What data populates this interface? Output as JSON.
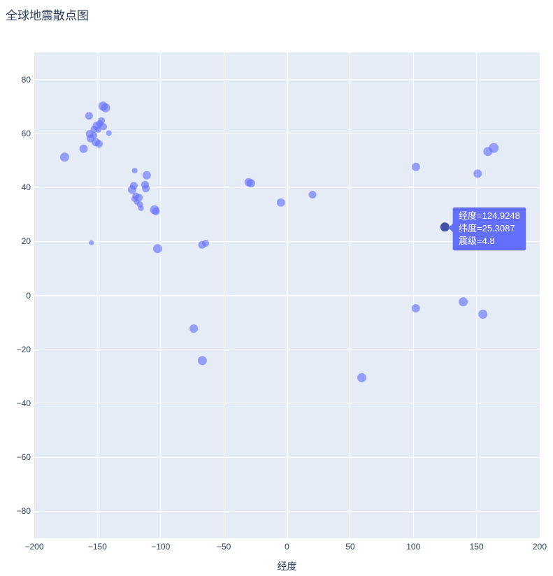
{
  "title": "全球地震散点图",
  "colors": {
    "plot_bg": "#e5ecf6",
    "grid": "#ffffff",
    "text": "#2a3f5f",
    "marker": "#636efa",
    "marker_opacity": 0.62,
    "hover_marker": "#4450a8",
    "tooltip_bg": "#636efa",
    "tooltip_text": "#ffffff"
  },
  "tooltip": {
    "lines": [
      "经度=124.9248",
      "纬度=25.3087",
      "震级=4.8"
    ]
  },
  "chart_data": {
    "type": "scatter",
    "title": "全球地震散点图",
    "xlabel": "经度",
    "ylabel": "",
    "x_range": [
      -200,
      200
    ],
    "y_range": [
      -90,
      90
    ],
    "grid": true,
    "legend_position": "none",
    "x_ticks": [
      {
        "v": -200,
        "label": "−200"
      },
      {
        "v": -150,
        "label": "−150"
      },
      {
        "v": -100,
        "label": "−100"
      },
      {
        "v": -50,
        "label": "−50"
      },
      {
        "v": 0,
        "label": "0"
      },
      {
        "v": 50,
        "label": "50"
      },
      {
        "v": 100,
        "label": "100"
      },
      {
        "v": 150,
        "label": "150"
      },
      {
        "v": 200,
        "label": "200"
      }
    ],
    "y_ticks": [
      {
        "v": 80,
        "label": "80"
      },
      {
        "v": 60,
        "label": "60"
      },
      {
        "v": 40,
        "label": "40"
      },
      {
        "v": 20,
        "label": "20"
      },
      {
        "v": 0,
        "label": "0"
      },
      {
        "v": -20,
        "label": "−20"
      },
      {
        "v": -40,
        "label": "−40"
      },
      {
        "v": -60,
        "label": "−60"
      },
      {
        "v": -80,
        "label": "−80"
      }
    ],
    "hover_point": {
      "lon": 124.9248,
      "lat": 25.3087,
      "magnitude": 4.8,
      "size": 13
    },
    "points": [
      {
        "lon": -176.0,
        "lat": 51.2,
        "size": 13
      },
      {
        "lon": -161.0,
        "lat": 54.3,
        "size": 12
      },
      {
        "lon": -155.4,
        "lat": 58.1,
        "size": 11
      },
      {
        "lon": -151.3,
        "lat": 56.8,
        "size": 12
      },
      {
        "lon": -148.8,
        "lat": 56.1,
        "size": 11
      },
      {
        "lon": -156.2,
        "lat": 59.8,
        "size": 11
      },
      {
        "lon": -152.8,
        "lat": 59.3,
        "size": 10
      },
      {
        "lon": -140.9,
        "lat": 60.1,
        "size": 8
      },
      {
        "lon": -152.7,
        "lat": 61.5,
        "size": 10
      },
      {
        "lon": -149.3,
        "lat": 61.4,
        "size": 9
      },
      {
        "lon": -150.5,
        "lat": 62.8,
        "size": 12
      },
      {
        "lon": -145.2,
        "lat": 62.5,
        "size": 10
      },
      {
        "lon": -148.2,
        "lat": 63.6,
        "size": 10
      },
      {
        "lon": -146.8,
        "lat": 64.7,
        "size": 10
      },
      {
        "lon": -156.6,
        "lat": 66.5,
        "size": 11
      },
      {
        "lon": -145.6,
        "lat": 70.1,
        "size": 13
      },
      {
        "lon": -143.6,
        "lat": 69.5,
        "size": 13
      },
      {
        "lon": -120.5,
        "lat": 46.2,
        "size": 8
      },
      {
        "lon": -111.0,
        "lat": 44.5,
        "size": 12
      },
      {
        "lon": -112.3,
        "lat": 41.0,
        "size": 11
      },
      {
        "lon": -111.7,
        "lat": 39.6,
        "size": 11
      },
      {
        "lon": -121.2,
        "lat": 40.6,
        "size": 11
      },
      {
        "lon": -122.6,
        "lat": 39.2,
        "size": 12
      },
      {
        "lon": -119.6,
        "lat": 36.8,
        "size": 10
      },
      {
        "lon": -117.2,
        "lat": 36.2,
        "size": 11
      },
      {
        "lon": -120.9,
        "lat": 35.7,
        "size": 8
      },
      {
        "lon": -118.9,
        "lat": 34.6,
        "size": 8
      },
      {
        "lon": -116.4,
        "lat": 33.7,
        "size": 9
      },
      {
        "lon": -115.5,
        "lat": 32.3,
        "size": 8
      },
      {
        "lon": -104.8,
        "lat": 31.7,
        "size": 13
      },
      {
        "lon": -103.7,
        "lat": 31.1,
        "size": 11
      },
      {
        "lon": -154.8,
        "lat": 19.5,
        "size": 7
      },
      {
        "lon": -102.4,
        "lat": 17.3,
        "size": 13
      },
      {
        "lon": -67.2,
        "lat": 18.7,
        "size": 11
      },
      {
        "lon": -64.4,
        "lat": 19.3,
        "size": 10
      },
      {
        "lon": -73.8,
        "lat": -12.3,
        "size": 12
      },
      {
        "lon": -67.0,
        "lat": -24.2,
        "size": 13
      },
      {
        "lon": -30.3,
        "lat": 41.9,
        "size": 12
      },
      {
        "lon": -28.5,
        "lat": 41.5,
        "size": 12
      },
      {
        "lon": -4.8,
        "lat": 34.4,
        "size": 12
      },
      {
        "lon": 20.2,
        "lat": 37.3,
        "size": 11
      },
      {
        "lon": 59.2,
        "lat": -30.5,
        "size": 13
      },
      {
        "lon": 101.9,
        "lat": -4.8,
        "size": 12
      },
      {
        "lon": 102.0,
        "lat": 47.6,
        "size": 12
      },
      {
        "lon": 139.5,
        "lat": -2.4,
        "size": 13
      },
      {
        "lon": 150.9,
        "lat": 45.1,
        "size": 12
      },
      {
        "lon": 155.0,
        "lat": -7.0,
        "size": 13
      },
      {
        "lon": 159.0,
        "lat": 53.3,
        "size": 13
      },
      {
        "lon": 163.6,
        "lat": 54.6,
        "size": 14
      }
    ]
  }
}
